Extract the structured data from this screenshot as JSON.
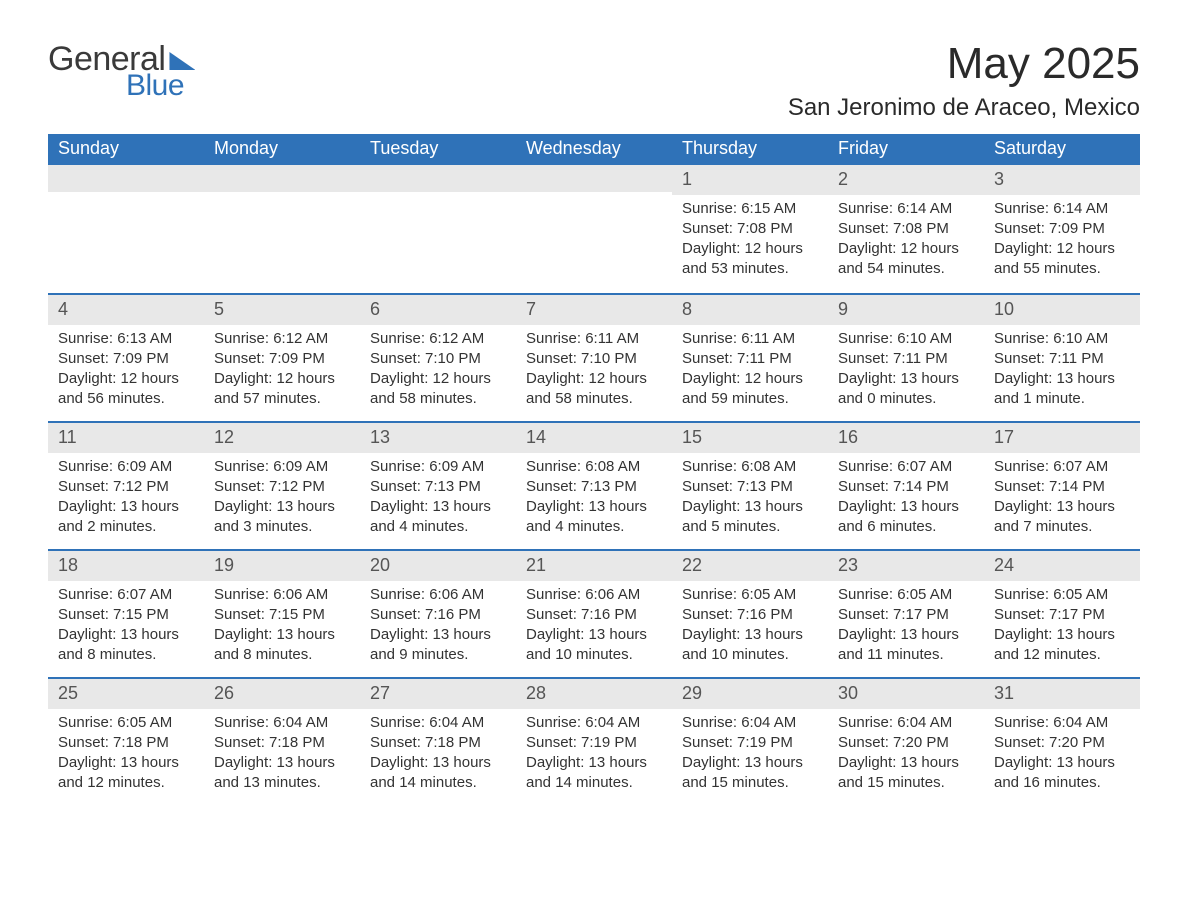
{
  "brand": {
    "word1": "General",
    "word2": "Blue",
    "logo_color": "#2f72b8",
    "text_color": "#3a3a3a"
  },
  "title": "May 2025",
  "location": "San Jeronimo de Araceo, Mexico",
  "colors": {
    "header_bg": "#2f72b8",
    "header_text": "#ffffff",
    "daynum_bg": "#e8e8e8",
    "daynum_text": "#555555",
    "body_text": "#333333",
    "week_divider": "#2f72b8",
    "page_bg": "#ffffff"
  },
  "typography": {
    "title_fontsize": 44,
    "location_fontsize": 24,
    "dow_fontsize": 18,
    "daynum_fontsize": 18,
    "body_fontsize": 15
  },
  "layout": {
    "columns": 7,
    "weeks": 5,
    "first_day_column_index": 4
  },
  "days_of_week": [
    "Sunday",
    "Monday",
    "Tuesday",
    "Wednesday",
    "Thursday",
    "Friday",
    "Saturday"
  ],
  "weeks": [
    [
      null,
      null,
      null,
      null,
      {
        "n": "1",
        "sunrise": "Sunrise: 6:15 AM",
        "sunset": "Sunset: 7:08 PM",
        "daylight": "Daylight: 12 hours and 53 minutes."
      },
      {
        "n": "2",
        "sunrise": "Sunrise: 6:14 AM",
        "sunset": "Sunset: 7:08 PM",
        "daylight": "Daylight: 12 hours and 54 minutes."
      },
      {
        "n": "3",
        "sunrise": "Sunrise: 6:14 AM",
        "sunset": "Sunset: 7:09 PM",
        "daylight": "Daylight: 12 hours and 55 minutes."
      }
    ],
    [
      {
        "n": "4",
        "sunrise": "Sunrise: 6:13 AM",
        "sunset": "Sunset: 7:09 PM",
        "daylight": "Daylight: 12 hours and 56 minutes."
      },
      {
        "n": "5",
        "sunrise": "Sunrise: 6:12 AM",
        "sunset": "Sunset: 7:09 PM",
        "daylight": "Daylight: 12 hours and 57 minutes."
      },
      {
        "n": "6",
        "sunrise": "Sunrise: 6:12 AM",
        "sunset": "Sunset: 7:10 PM",
        "daylight": "Daylight: 12 hours and 58 minutes."
      },
      {
        "n": "7",
        "sunrise": "Sunrise: 6:11 AM",
        "sunset": "Sunset: 7:10 PM",
        "daylight": "Daylight: 12 hours and 58 minutes."
      },
      {
        "n": "8",
        "sunrise": "Sunrise: 6:11 AM",
        "sunset": "Sunset: 7:11 PM",
        "daylight": "Daylight: 12 hours and 59 minutes."
      },
      {
        "n": "9",
        "sunrise": "Sunrise: 6:10 AM",
        "sunset": "Sunset: 7:11 PM",
        "daylight": "Daylight: 13 hours and 0 minutes."
      },
      {
        "n": "10",
        "sunrise": "Sunrise: 6:10 AM",
        "sunset": "Sunset: 7:11 PM",
        "daylight": "Daylight: 13 hours and 1 minute."
      }
    ],
    [
      {
        "n": "11",
        "sunrise": "Sunrise: 6:09 AM",
        "sunset": "Sunset: 7:12 PM",
        "daylight": "Daylight: 13 hours and 2 minutes."
      },
      {
        "n": "12",
        "sunrise": "Sunrise: 6:09 AM",
        "sunset": "Sunset: 7:12 PM",
        "daylight": "Daylight: 13 hours and 3 minutes."
      },
      {
        "n": "13",
        "sunrise": "Sunrise: 6:09 AM",
        "sunset": "Sunset: 7:13 PM",
        "daylight": "Daylight: 13 hours and 4 minutes."
      },
      {
        "n": "14",
        "sunrise": "Sunrise: 6:08 AM",
        "sunset": "Sunset: 7:13 PM",
        "daylight": "Daylight: 13 hours and 4 minutes."
      },
      {
        "n": "15",
        "sunrise": "Sunrise: 6:08 AM",
        "sunset": "Sunset: 7:13 PM",
        "daylight": "Daylight: 13 hours and 5 minutes."
      },
      {
        "n": "16",
        "sunrise": "Sunrise: 6:07 AM",
        "sunset": "Sunset: 7:14 PM",
        "daylight": "Daylight: 13 hours and 6 minutes."
      },
      {
        "n": "17",
        "sunrise": "Sunrise: 6:07 AM",
        "sunset": "Sunset: 7:14 PM",
        "daylight": "Daylight: 13 hours and 7 minutes."
      }
    ],
    [
      {
        "n": "18",
        "sunrise": "Sunrise: 6:07 AM",
        "sunset": "Sunset: 7:15 PM",
        "daylight": "Daylight: 13 hours and 8 minutes."
      },
      {
        "n": "19",
        "sunrise": "Sunrise: 6:06 AM",
        "sunset": "Sunset: 7:15 PM",
        "daylight": "Daylight: 13 hours and 8 minutes."
      },
      {
        "n": "20",
        "sunrise": "Sunrise: 6:06 AM",
        "sunset": "Sunset: 7:16 PM",
        "daylight": "Daylight: 13 hours and 9 minutes."
      },
      {
        "n": "21",
        "sunrise": "Sunrise: 6:06 AM",
        "sunset": "Sunset: 7:16 PM",
        "daylight": "Daylight: 13 hours and 10 minutes."
      },
      {
        "n": "22",
        "sunrise": "Sunrise: 6:05 AM",
        "sunset": "Sunset: 7:16 PM",
        "daylight": "Daylight: 13 hours and 10 minutes."
      },
      {
        "n": "23",
        "sunrise": "Sunrise: 6:05 AM",
        "sunset": "Sunset: 7:17 PM",
        "daylight": "Daylight: 13 hours and 11 minutes."
      },
      {
        "n": "24",
        "sunrise": "Sunrise: 6:05 AM",
        "sunset": "Sunset: 7:17 PM",
        "daylight": "Daylight: 13 hours and 12 minutes."
      }
    ],
    [
      {
        "n": "25",
        "sunrise": "Sunrise: 6:05 AM",
        "sunset": "Sunset: 7:18 PM",
        "daylight": "Daylight: 13 hours and 12 minutes."
      },
      {
        "n": "26",
        "sunrise": "Sunrise: 6:04 AM",
        "sunset": "Sunset: 7:18 PM",
        "daylight": "Daylight: 13 hours and 13 minutes."
      },
      {
        "n": "27",
        "sunrise": "Sunrise: 6:04 AM",
        "sunset": "Sunset: 7:18 PM",
        "daylight": "Daylight: 13 hours and 14 minutes."
      },
      {
        "n": "28",
        "sunrise": "Sunrise: 6:04 AM",
        "sunset": "Sunset: 7:19 PM",
        "daylight": "Daylight: 13 hours and 14 minutes."
      },
      {
        "n": "29",
        "sunrise": "Sunrise: 6:04 AM",
        "sunset": "Sunset: 7:19 PM",
        "daylight": "Daylight: 13 hours and 15 minutes."
      },
      {
        "n": "30",
        "sunrise": "Sunrise: 6:04 AM",
        "sunset": "Sunset: 7:20 PM",
        "daylight": "Daylight: 13 hours and 15 minutes."
      },
      {
        "n": "31",
        "sunrise": "Sunrise: 6:04 AM",
        "sunset": "Sunset: 7:20 PM",
        "daylight": "Daylight: 13 hours and 16 minutes."
      }
    ]
  ]
}
